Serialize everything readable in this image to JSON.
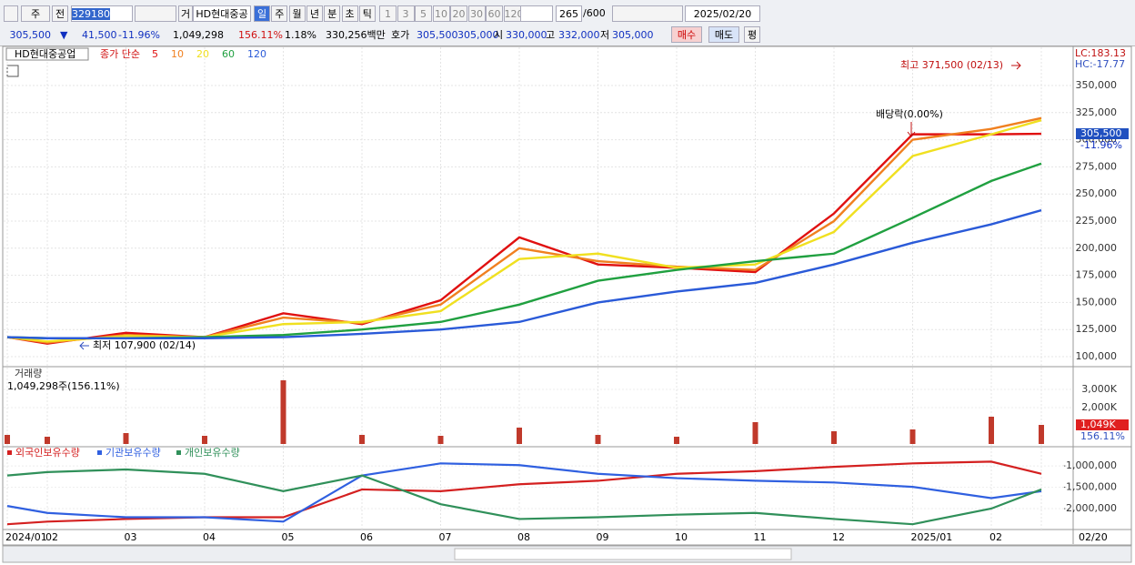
{
  "toolbar": {
    "period_unit": "주",
    "prev": "전",
    "code": "329180",
    "trade": "거",
    "name": "HD현대중공",
    "periods": [
      "일",
      "주",
      "월",
      "년",
      "분",
      "초",
      "틱"
    ],
    "intervals": [
      "1",
      "3",
      "5",
      "10",
      "20",
      "30",
      "60",
      "120"
    ],
    "count": "265",
    "max_count": "/600",
    "date": "2025/02/20"
  },
  "quote": {
    "price": "305,500",
    "direction": "▼",
    "change": "41,500",
    "change_pct": "-11.96%",
    "volume": "1,049,298",
    "volume_pct": "156.11%",
    "turnover_pct": "1.18%",
    "amount": "330,256백만",
    "hoga": "호가",
    "ask": "305,500",
    "bid": "305,000",
    "open_label": "시",
    "open": "330,000",
    "high_label": "고",
    "high": "332,000",
    "low_label": "저",
    "low": "305,000",
    "buy": "매수",
    "sell": "매도",
    "avg": "평"
  },
  "chart_data": [
    {
      "type": "line",
      "title": "HD현대중공업",
      "subtitle": "종가 단순",
      "categories": [
        "2024/01",
        "02",
        "03",
        "04",
        "05",
        "06",
        "07",
        "08",
        "09",
        "10",
        "11",
        "12",
        "2025/01",
        "02",
        "02/20"
      ],
      "series": [
        {
          "name": "5",
          "color": "#e01010",
          "values": [
            118000,
            112000,
            122000,
            118000,
            140000,
            130000,
            152000,
            210000,
            185000,
            182000,
            178000,
            232000,
            305000,
            305000,
            305500
          ]
        },
        {
          "name": "10",
          "color": "#f08020",
          "values": [
            118000,
            113000,
            120000,
            118000,
            136000,
            131000,
            148000,
            200000,
            188000,
            183000,
            180000,
            225000,
            300000,
            310000,
            320000
          ]
        },
        {
          "name": "20",
          "color": "#f0e020",
          "values": [
            118000,
            114000,
            119000,
            118000,
            130000,
            132000,
            142000,
            190000,
            195000,
            182000,
            185000,
            215000,
            285000,
            305000,
            318000
          ]
        },
        {
          "name": "60",
          "color": "#20a040",
          "values": [
            118000,
            117000,
            117000,
            118000,
            120000,
            125000,
            132000,
            148000,
            170000,
            180000,
            188000,
            195000,
            228000,
            262000,
            278000
          ]
        },
        {
          "name": "120",
          "color": "#2a5ad8",
          "values": [
            118000,
            117000,
            117000,
            117000,
            118000,
            121000,
            125000,
            132000,
            150000,
            160000,
            168000,
            185000,
            205000,
            222000,
            235000
          ]
        }
      ],
      "ylim": [
        93300,
        382700
      ],
      "yticks": [
        {
          "value": 100000,
          "label": "100,000"
        },
        {
          "value": 125000,
          "label": "125,000"
        },
        {
          "value": 150000,
          "label": "150,000"
        },
        {
          "value": 175000,
          "label": "175,000"
        },
        {
          "value": 200000,
          "label": "200,000"
        },
        {
          "value": 225000,
          "label": "225,000"
        },
        {
          "value": 250000,
          "label": "250,000"
        },
        {
          "value": 275000,
          "label": "275,000"
        },
        {
          "value": 300000,
          "label": "300,000"
        },
        {
          "value": 325000,
          "label": "325,000"
        },
        {
          "value": 350000,
          "label": "350,000"
        }
      ],
      "grid": true,
      "annotations": [
        "최고 371,500 (02/13)",
        "최저 107,900 (02/14)",
        "배당락(0.00%)",
        "LC:183.13",
        "HC:-17.77",
        "305,500",
        "-11.96%"
      ]
    },
    {
      "type": "bar",
      "title": "거래량",
      "subtitle": "1,049,298주(156.11%)",
      "color": "#c0392b",
      "values": [
        500000,
        400000,
        600000,
        450000,
        3500000,
        500000,
        450000,
        900000,
        500000,
        400000,
        1200000,
        700000,
        800000,
        1500000,
        1049298
      ],
      "ylim": [
        0,
        4200000
      ],
      "yticks": [
        {
          "value": 2000000,
          "label": "2,000K"
        },
        {
          "value": 3000000,
          "label": "3,000K"
        }
      ],
      "annotations": [
        "1,049K",
        "156.11%"
      ]
    },
    {
      "type": "line",
      "series": [
        {
          "name": "외국인보유수량",
          "color": "#d42020",
          "values": [
            -2367000,
            -2306000,
            -2245000,
            -2204000,
            -2204000,
            -1551000,
            -1592000,
            -1429000,
            -1347000,
            -1184000,
            -1122000,
            -1020000,
            -939000,
            -898000,
            -1184000
          ]
        },
        {
          "name": "기관보유수량",
          "color": "#3060e0",
          "values": [
            -1939000,
            -2102000,
            -2204000,
            -2204000,
            -2306000,
            -1224000,
            -939000,
            -980000,
            -1184000,
            -1286000,
            -1347000,
            -1388000,
            -1490000,
            -1755000,
            -1592000
          ]
        },
        {
          "name": "개인보유수량",
          "color": "#30905a",
          "values": [
            -1224000,
            -1143000,
            -1082000,
            -1184000,
            -1592000,
            -1224000,
            -1898000,
            -2245000,
            -2204000,
            -2143000,
            -2102000,
            -2245000,
            -2367000,
            -2000000,
            -1551000
          ]
        }
      ],
      "ylim": [
        -2449000,
        -612000
      ],
      "yticks": [
        {
          "value": -1000000,
          "label": "-1,000,000"
        },
        {
          "value": -1500000,
          "label": "-1,500,000"
        },
        {
          "value": -2000000,
          "label": "-2,000,000"
        }
      ]
    }
  ]
}
